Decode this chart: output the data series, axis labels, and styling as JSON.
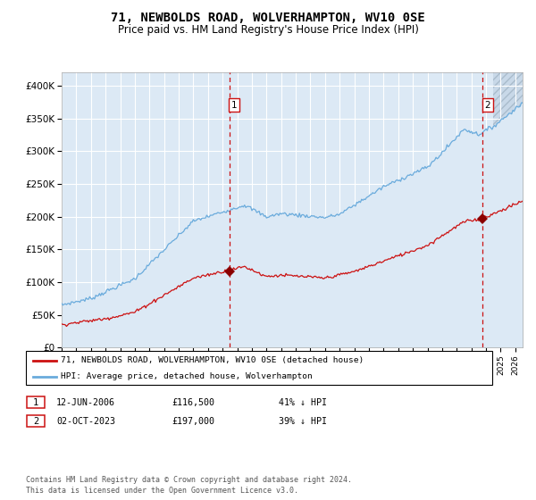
{
  "title": "71, NEWBOLDS ROAD, WOLVERHAMPTON, WV10 0SE",
  "subtitle": "Price paid vs. HM Land Registry's House Price Index (HPI)",
  "title_fontsize": 10,
  "subtitle_fontsize": 8.5,
  "bg_color": "#dce9f5",
  "grid_color": "#ffffff",
  "hpi_color": "#6aabdc",
  "price_color": "#cc1111",
  "marker_color": "#8b0000",
  "vline_color": "#cc1111",
  "ylim": [
    0,
    420000
  ],
  "yticks": [
    0,
    50000,
    100000,
    150000,
    200000,
    250000,
    300000,
    350000,
    400000
  ],
  "ytick_labels": [
    "£0",
    "£50K",
    "£100K",
    "£150K",
    "£200K",
    "£250K",
    "£300K",
    "£350K",
    "£400K"
  ],
  "transaction1_date": 2006.45,
  "transaction1_price": 116500,
  "transaction1_label": "1",
  "transaction2_date": 2023.75,
  "transaction2_price": 197000,
  "transaction2_label": "2",
  "legend_line1": "71, NEWBOLDS ROAD, WOLVERHAMPTON, WV10 0SE (detached house)",
  "legend_line2": "HPI: Average price, detached house, Wolverhampton",
  "note1_label": "1",
  "note1_date": "12-JUN-2006",
  "note1_price": "£116,500",
  "note1_pct": "41% ↓ HPI",
  "note2_label": "2",
  "note2_date": "02-OCT-2023",
  "note2_price": "£197,000",
  "note2_pct": "39% ↓ HPI",
  "footer": "Contains HM Land Registry data © Crown copyright and database right 2024.\nThis data is licensed under the Open Government Licence v3.0.",
  "xlim_start": 1995.0,
  "xlim_end": 2026.5,
  "hatch_start": 2024.5
}
